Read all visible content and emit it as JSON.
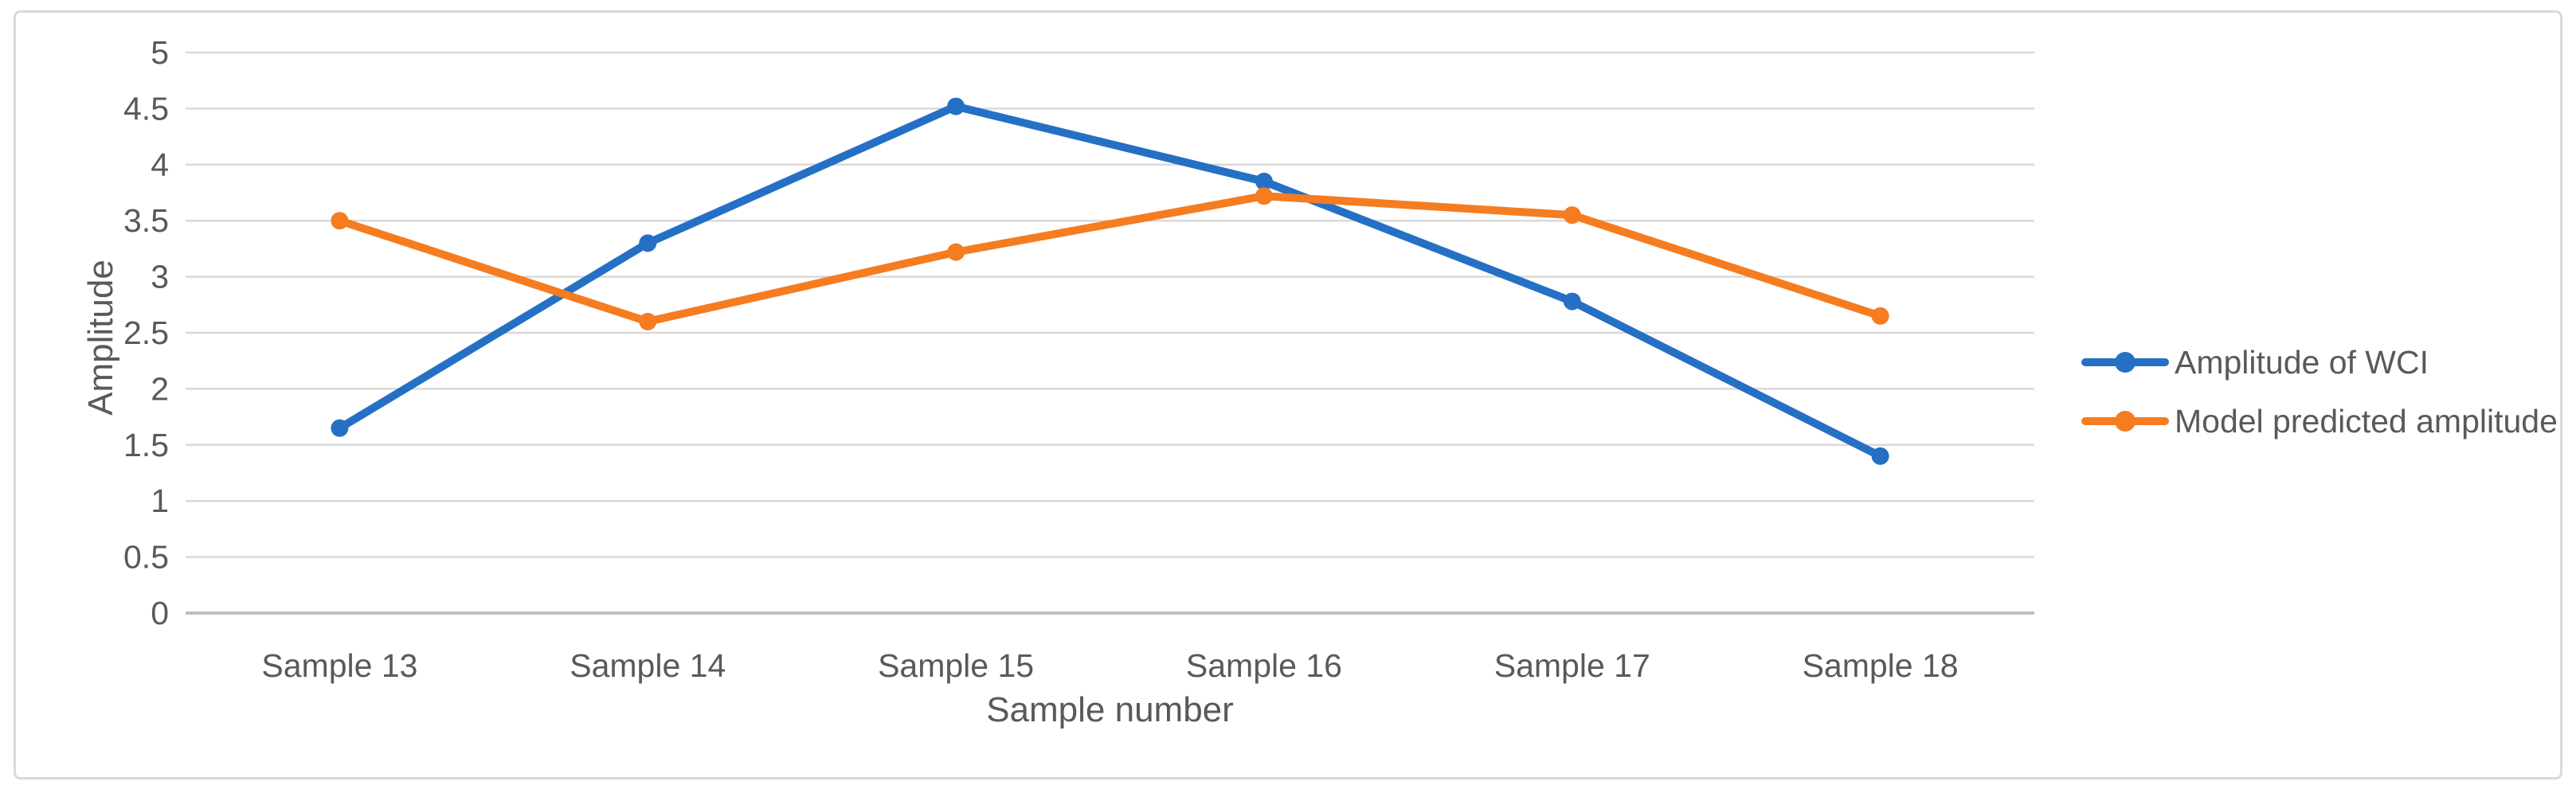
{
  "figure": {
    "background": "#ffffff",
    "border_color": "#d9d9d9"
  },
  "colors": {
    "gridline": "#d9d9d9",
    "axis_line": "#bfbfbf",
    "text": "#595959",
    "series_blue": "#2570c4",
    "series_orange": "#f57c20"
  },
  "chart_data": {
    "type": "line",
    "title": "",
    "xlabel": "Sample number",
    "ylabel": "Amplitude",
    "categories": [
      "Sample 13",
      "Sample 14",
      "Sample 15",
      "Sample 16",
      "Sample 17",
      "Sample 18"
    ],
    "series": [
      {
        "name": "Amplitude of WCI",
        "color": "#2570c4",
        "values": [
          1.65,
          3.3,
          4.52,
          3.85,
          2.78,
          1.4
        ]
      },
      {
        "name": "Model predicted amplitude",
        "color": "#f57c20",
        "values": [
          3.5,
          2.6,
          3.22,
          3.72,
          3.55,
          2.65
        ]
      }
    ],
    "ylim": [
      0,
      5
    ],
    "ytick_step": 0.5,
    "ytick_labels": [
      "5",
      "4.5",
      "4",
      "3.5",
      "3",
      "2.5",
      "2",
      "1.5",
      "1",
      "0.5",
      "0"
    ],
    "grid": true,
    "legend_position": "right-middle"
  }
}
